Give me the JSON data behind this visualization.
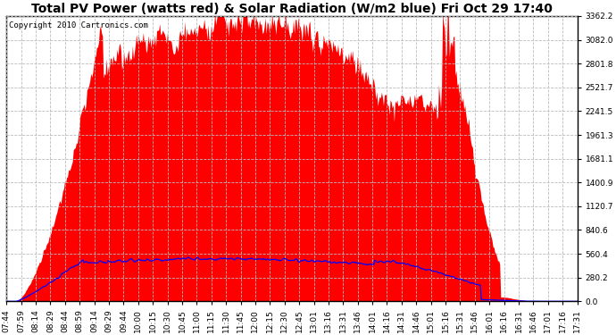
{
  "title": "Total PV Power (watts red) & Solar Radiation (W/m2 blue) Fri Oct 29 17:40",
  "copyright_text": "Copyright 2010 Cartronics.com",
  "y_ticks": [
    0.0,
    280.2,
    560.4,
    840.6,
    1120.7,
    1400.9,
    1681.1,
    1961.3,
    2241.5,
    2521.7,
    2801.8,
    3082.0,
    3362.2
  ],
  "y_max": 3362.2,
  "y_min": 0.0,
  "fill_color": "#FF0000",
  "line_color": "#0000FF",
  "background_color": "#FFFFFF",
  "grid_color": "#BBBBBB",
  "title_fontsize": 10,
  "copyright_fontsize": 6.5,
  "tick_fontsize": 6.5,
  "solar_rad_scale": 500.0,
  "pv_max": 3362.2
}
